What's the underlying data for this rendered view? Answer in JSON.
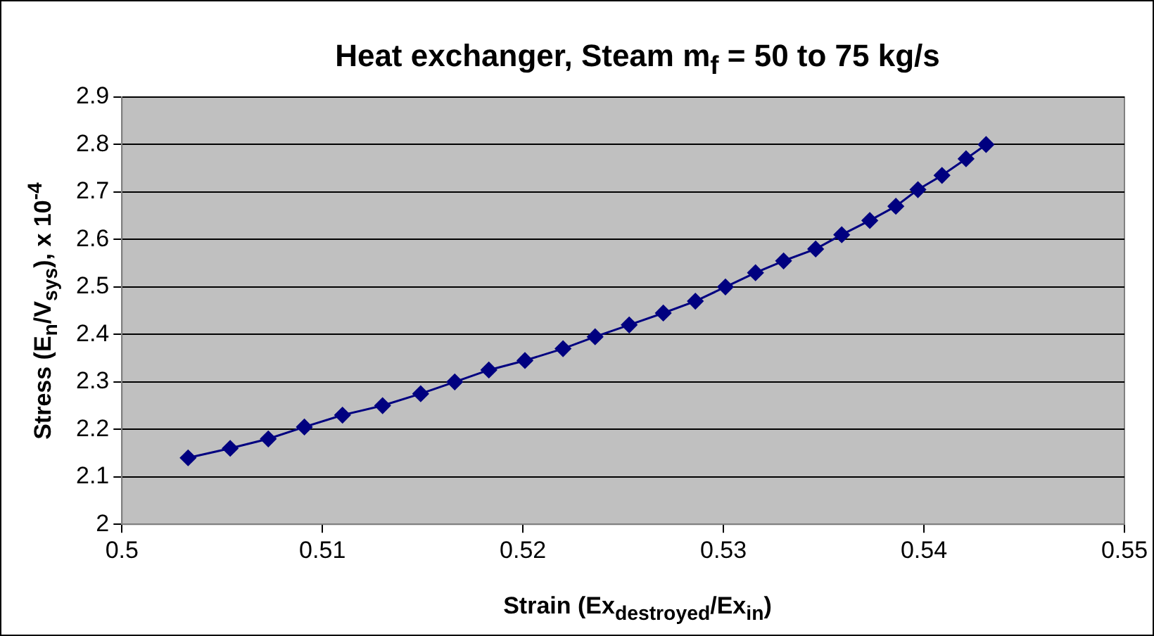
{
  "chart_data": {
    "type": "line",
    "title": "Heat exchanger, Steam m$_{f}$ = 50 to 75 kg/s",
    "xlabel": "Strain (Ex$_{destroyed}$/Ex$_{in}$)",
    "ylabel": "Stress (E$_{n}$/V$_{sys}$), x 10$^{-4}$",
    "x": [
      0.5033,
      0.5054,
      0.5073,
      0.5091,
      0.511,
      0.513,
      0.5149,
      0.5166,
      0.5183,
      0.5201,
      0.522,
      0.5236,
      0.5253,
      0.527,
      0.5286,
      0.5301,
      0.5316,
      0.533,
      0.5346,
      0.5359,
      0.5373,
      0.5386,
      0.5397,
      0.5409,
      0.5421,
      0.5431
    ],
    "series": [
      {
        "color": "#000080",
        "values": [
          2.14,
          2.16,
          2.18,
          2.205,
          2.23,
          2.25,
          2.275,
          2.3,
          2.325,
          2.345,
          2.37,
          2.395,
          2.42,
          2.445,
          2.47,
          2.5,
          2.53,
          2.555,
          2.58,
          2.61,
          2.64,
          2.67,
          2.705,
          2.735,
          2.77,
          2.8
        ]
      }
    ],
    "xlim": [
      0.5,
      0.55
    ],
    "xticks": [
      0.5,
      0.51,
      0.52,
      0.53,
      0.54,
      0.55
    ],
    "ylim": [
      2,
      2.9
    ],
    "yticks": [
      2,
      2.1,
      2.2,
      2.3,
      2.4,
      2.5,
      2.6,
      2.7,
      2.8,
      2.9
    ],
    "grid": "y",
    "legend": false,
    "marker": "diamond",
    "line_style": "solid"
  }
}
